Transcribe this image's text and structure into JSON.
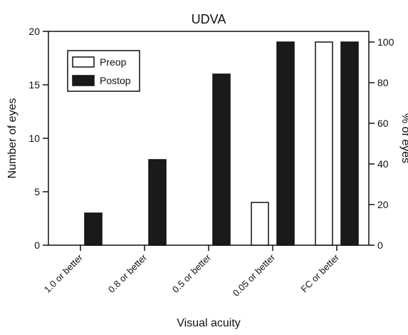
{
  "chart_data": {
    "type": "bar",
    "title": "UDVA",
    "xlabel": "Visual acuity",
    "ylabel": "Number of eyes",
    "y2label": "% of eyes",
    "categories": [
      "1.0 or better",
      "0.8 or better",
      "0.5 or better",
      "0.05 or better",
      "FC or better"
    ],
    "series": [
      {
        "name": "Preop",
        "values": [
          0,
          0,
          0,
          4,
          19
        ],
        "fill": "#ffffff",
        "stroke": "#111111"
      },
      {
        "name": "Postop",
        "values": [
          3,
          8,
          16,
          19,
          19
        ],
        "fill": "#1a1a1a",
        "stroke": "#111111"
      }
    ],
    "ylim": [
      0,
      20
    ],
    "yticks": [
      0,
      5,
      10,
      15,
      20
    ],
    "y2lim": [
      0,
      105.26
    ],
    "y2ticks": [
      0,
      20,
      40,
      60,
      80,
      100
    ],
    "grid": false,
    "legend_position": "top-left"
  }
}
